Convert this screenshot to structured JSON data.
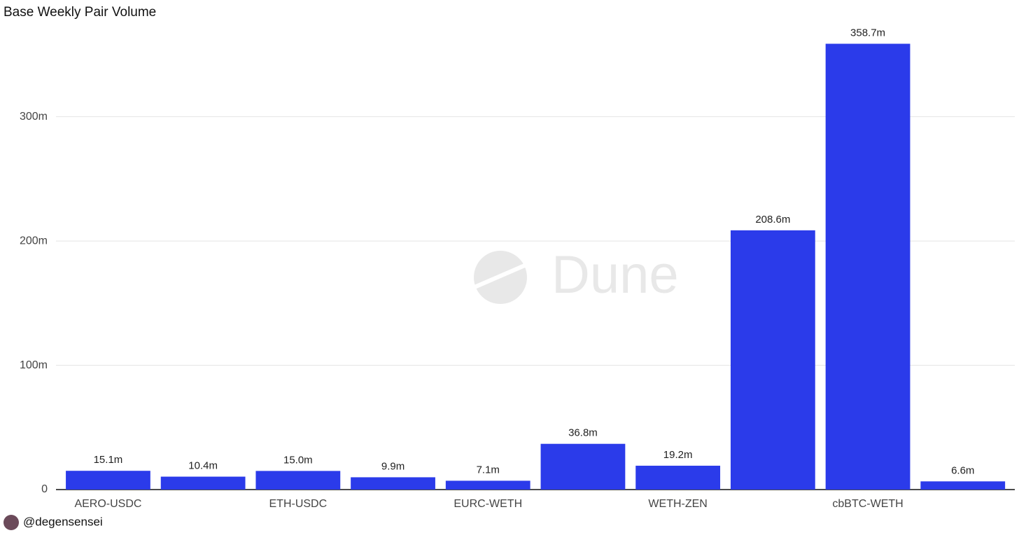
{
  "chart_data": {
    "type": "bar",
    "title": "Base Weekly Pair Volume",
    "categories": [
      "AERO-USDC",
      null,
      "ETH-USDC",
      null,
      "EURC-WETH",
      null,
      "WETH-ZEN",
      null,
      "cbBTC-WETH",
      null
    ],
    "values": [
      15.1,
      10.4,
      15.0,
      9.9,
      7.1,
      36.8,
      19.2,
      208.6,
      358.7,
      6.6
    ],
    "value_labels": [
      "15.1m",
      "10.4m",
      "15.0m",
      "9.9m",
      "7.1m",
      "36.8m",
      "19.2m",
      "208.6m",
      "358.7m",
      "6.6m"
    ],
    "color": "#2b3bea",
    "ylim": [
      0,
      377
    ],
    "yticks": [
      0,
      {
        "value": 100,
        "label": "100m"
      },
      {
        "value": 200,
        "label": "200m"
      },
      {
        "value": 300,
        "label": "300m"
      }
    ],
    "grid": true,
    "watermark": "Dune",
    "author": "@degensensei"
  }
}
